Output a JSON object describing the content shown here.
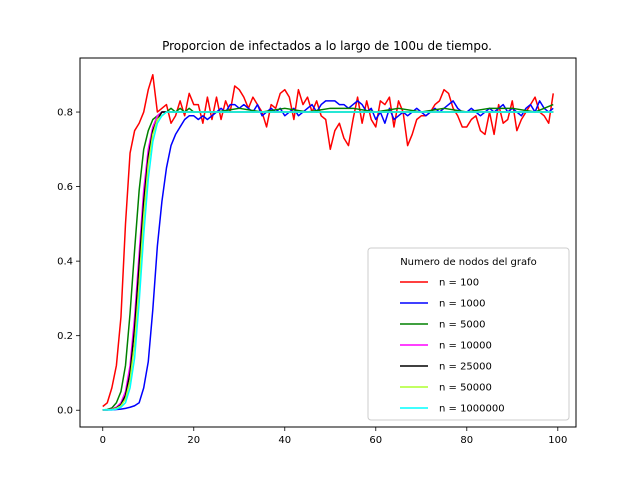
{
  "chart_data": {
    "type": "line",
    "title": "Proporcion de infectados a lo largo de 100u de tiempo.",
    "xlabel": "",
    "ylabel": "",
    "xlim": [
      -5,
      104
    ],
    "ylim": [
      -0.045,
      0.945
    ],
    "xticks": [
      0,
      20,
      40,
      60,
      80,
      100
    ],
    "yticks": [
      0.0,
      0.2,
      0.4,
      0.6,
      0.8
    ],
    "ytick_labels": [
      "0.0",
      "0.2",
      "0.4",
      "0.6",
      "0.8"
    ],
    "grid": false,
    "legend": {
      "title": "Numero de nodos del grafo",
      "placement": "lower-right"
    },
    "series": [
      {
        "name": "n = 100",
        "color": "#ff0000",
        "x": [
          0,
          1,
          2,
          3,
          4,
          5,
          6,
          7,
          8,
          9,
          10,
          11,
          12,
          13,
          14,
          15,
          16,
          17,
          18,
          19,
          20,
          21,
          22,
          23,
          24,
          25,
          26,
          27,
          28,
          29,
          30,
          31,
          32,
          33,
          34,
          35,
          36,
          37,
          38,
          39,
          40,
          41,
          42,
          43,
          44,
          45,
          46,
          47,
          48,
          49,
          50,
          51,
          52,
          53,
          54,
          55,
          56,
          57,
          58,
          59,
          60,
          61,
          62,
          63,
          64,
          65,
          66,
          67,
          68,
          69,
          70,
          71,
          72,
          73,
          74,
          75,
          76,
          77,
          78,
          79,
          80,
          81,
          82,
          83,
          84,
          85,
          86,
          87,
          88,
          89,
          90,
          91,
          92,
          93,
          94,
          95,
          96,
          97,
          98,
          99
        ],
        "y": [
          0.01,
          0.02,
          0.06,
          0.12,
          0.25,
          0.5,
          0.69,
          0.75,
          0.77,
          0.8,
          0.86,
          0.9,
          0.8,
          0.81,
          0.82,
          0.77,
          0.79,
          0.83,
          0.79,
          0.85,
          0.82,
          0.82,
          0.77,
          0.84,
          0.78,
          0.84,
          0.78,
          0.83,
          0.8,
          0.87,
          0.86,
          0.84,
          0.81,
          0.84,
          0.82,
          0.8,
          0.76,
          0.82,
          0.81,
          0.85,
          0.86,
          0.84,
          0.78,
          0.86,
          0.82,
          0.84,
          0.8,
          0.83,
          0.79,
          0.78,
          0.7,
          0.75,
          0.77,
          0.73,
          0.71,
          0.78,
          0.84,
          0.77,
          0.83,
          0.78,
          0.76,
          0.83,
          0.82,
          0.84,
          0.76,
          0.83,
          0.8,
          0.71,
          0.74,
          0.78,
          0.79,
          0.79,
          0.8,
          0.82,
          0.83,
          0.86,
          0.85,
          0.81,
          0.79,
          0.76,
          0.76,
          0.78,
          0.79,
          0.75,
          0.74,
          0.8,
          0.74,
          0.82,
          0.77,
          0.78,
          0.83,
          0.75,
          0.78,
          0.8,
          0.82,
          0.84,
          0.8,
          0.79,
          0.77,
          0.85
        ]
      },
      {
        "name": "n = 1000",
        "color": "#0000ff",
        "x": [
          0,
          1,
          2,
          3,
          4,
          5,
          6,
          7,
          8,
          9,
          10,
          11,
          12,
          13,
          14,
          15,
          16,
          17,
          18,
          19,
          20,
          21,
          22,
          23,
          24,
          25,
          26,
          27,
          28,
          29,
          30,
          31,
          32,
          33,
          34,
          35,
          36,
          37,
          38,
          39,
          40,
          41,
          42,
          43,
          44,
          45,
          46,
          47,
          48,
          49,
          50,
          51,
          52,
          53,
          54,
          55,
          56,
          57,
          58,
          59,
          60,
          61,
          62,
          63,
          64,
          65,
          66,
          67,
          68,
          69,
          70,
          71,
          72,
          73,
          74,
          75,
          76,
          77,
          78,
          79,
          80,
          81,
          82,
          83,
          84,
          85,
          86,
          87,
          88,
          89,
          90,
          91,
          92,
          93,
          94,
          95,
          96,
          97,
          98,
          99
        ],
        "y": [
          0.001,
          0.001,
          0.001,
          0.002,
          0.003,
          0.005,
          0.008,
          0.012,
          0.02,
          0.06,
          0.13,
          0.27,
          0.44,
          0.56,
          0.65,
          0.71,
          0.74,
          0.76,
          0.78,
          0.79,
          0.79,
          0.78,
          0.79,
          0.78,
          0.79,
          0.8,
          0.81,
          0.8,
          0.82,
          0.82,
          0.81,
          0.82,
          0.81,
          0.8,
          0.82,
          0.79,
          0.8,
          0.81,
          0.8,
          0.81,
          0.79,
          0.8,
          0.81,
          0.79,
          0.8,
          0.81,
          0.82,
          0.8,
          0.82,
          0.83,
          0.83,
          0.83,
          0.82,
          0.82,
          0.81,
          0.82,
          0.83,
          0.82,
          0.8,
          0.81,
          0.78,
          0.8,
          0.77,
          0.81,
          0.78,
          0.79,
          0.8,
          0.79,
          0.8,
          0.81,
          0.8,
          0.79,
          0.8,
          0.81,
          0.8,
          0.81,
          0.82,
          0.83,
          0.81,
          0.8,
          0.8,
          0.81,
          0.8,
          0.79,
          0.8,
          0.81,
          0.8,
          0.81,
          0.82,
          0.8,
          0.81,
          0.8,
          0.79,
          0.81,
          0.82,
          0.8,
          0.83,
          0.81,
          0.8,
          0.81
        ]
      },
      {
        "name": "n = 5000",
        "color": "#008000",
        "x": [
          0,
          1,
          2,
          3,
          4,
          5,
          6,
          7,
          8,
          9,
          10,
          11,
          12,
          13,
          14,
          15,
          16,
          17,
          18,
          19,
          20,
          25,
          30,
          35,
          40,
          45,
          50,
          55,
          60,
          65,
          70,
          75,
          80,
          85,
          90,
          95,
          99
        ],
        "y": [
          0.001,
          0.002,
          0.006,
          0.02,
          0.05,
          0.12,
          0.26,
          0.43,
          0.59,
          0.7,
          0.75,
          0.78,
          0.79,
          0.8,
          0.8,
          0.81,
          0.8,
          0.81,
          0.8,
          0.81,
          0.8,
          0.8,
          0.81,
          0.8,
          0.81,
          0.8,
          0.81,
          0.81,
          0.8,
          0.81,
          0.8,
          0.81,
          0.8,
          0.81,
          0.81,
          0.8,
          0.82
        ]
      },
      {
        "name": "n = 10000",
        "color": "#ff00ff",
        "x": [
          0,
          1,
          2,
          3,
          4,
          5,
          6,
          7,
          8,
          9,
          10,
          11,
          12,
          13,
          14,
          15,
          16,
          17,
          18,
          19,
          20,
          25,
          30,
          35,
          40,
          45,
          50,
          55,
          60,
          65,
          70,
          75,
          80,
          85,
          90,
          95,
          99
        ],
        "y": [
          0.001,
          0.001,
          0.003,
          0.008,
          0.02,
          0.05,
          0.12,
          0.25,
          0.42,
          0.59,
          0.7,
          0.76,
          0.79,
          0.8,
          0.8,
          0.8,
          0.8,
          0.8,
          0.8,
          0.8,
          0.8,
          0.8,
          0.8,
          0.8,
          0.8,
          0.8,
          0.8,
          0.8,
          0.8,
          0.8,
          0.8,
          0.8,
          0.8,
          0.8,
          0.8,
          0.8,
          0.8
        ]
      },
      {
        "name": "n = 25000",
        "color": "#000000",
        "x": [
          0,
          1,
          2,
          3,
          4,
          5,
          6,
          7,
          8,
          9,
          10,
          11,
          12,
          13,
          14,
          15,
          16,
          17,
          18,
          19,
          20,
          25,
          30,
          35,
          40,
          45,
          50,
          55,
          60,
          65,
          70,
          75,
          80,
          85,
          90,
          95,
          99
        ],
        "y": [
          0.001,
          0.001,
          0.002,
          0.006,
          0.015,
          0.04,
          0.1,
          0.22,
          0.39,
          0.56,
          0.68,
          0.75,
          0.78,
          0.8,
          0.8,
          0.8,
          0.8,
          0.8,
          0.8,
          0.8,
          0.8,
          0.8,
          0.8,
          0.8,
          0.8,
          0.8,
          0.8,
          0.8,
          0.8,
          0.8,
          0.8,
          0.8,
          0.8,
          0.8,
          0.8,
          0.8,
          0.8
        ]
      },
      {
        "name": "n = 50000",
        "color": "#adff2f",
        "x": [
          0,
          1,
          2,
          3,
          4,
          5,
          6,
          7,
          8,
          9,
          10,
          11,
          12,
          13,
          14,
          15,
          16,
          17,
          18,
          19,
          20,
          25,
          30,
          35,
          40,
          45,
          50,
          55,
          60,
          65,
          70,
          75,
          80,
          85,
          90,
          95,
          99
        ],
        "y": [
          0.001,
          0.001,
          0.002,
          0.005,
          0.012,
          0.03,
          0.08,
          0.18,
          0.34,
          0.52,
          0.66,
          0.74,
          0.78,
          0.79,
          0.8,
          0.8,
          0.8,
          0.8,
          0.8,
          0.8,
          0.8,
          0.8,
          0.8,
          0.8,
          0.8,
          0.8,
          0.8,
          0.8,
          0.8,
          0.8,
          0.8,
          0.8,
          0.8,
          0.8,
          0.8,
          0.8,
          0.8
        ]
      },
      {
        "name": "n = 1000000",
        "color": "#00ffff",
        "x": [
          0,
          1,
          2,
          3,
          4,
          5,
          6,
          7,
          8,
          9,
          10,
          11,
          12,
          13,
          14,
          15,
          16,
          17,
          18,
          19,
          20,
          25,
          30,
          35,
          40,
          45,
          50,
          55,
          60,
          65,
          70,
          75,
          80,
          85,
          90,
          95,
          99
        ],
        "y": [
          0.001,
          0.001,
          0.001,
          0.003,
          0.008,
          0.02,
          0.06,
          0.14,
          0.29,
          0.47,
          0.62,
          0.72,
          0.77,
          0.79,
          0.8,
          0.8,
          0.8,
          0.8,
          0.8,
          0.8,
          0.8,
          0.8,
          0.8,
          0.8,
          0.8,
          0.8,
          0.8,
          0.8,
          0.8,
          0.8,
          0.8,
          0.8,
          0.8,
          0.8,
          0.8,
          0.8,
          0.8
        ]
      }
    ]
  }
}
